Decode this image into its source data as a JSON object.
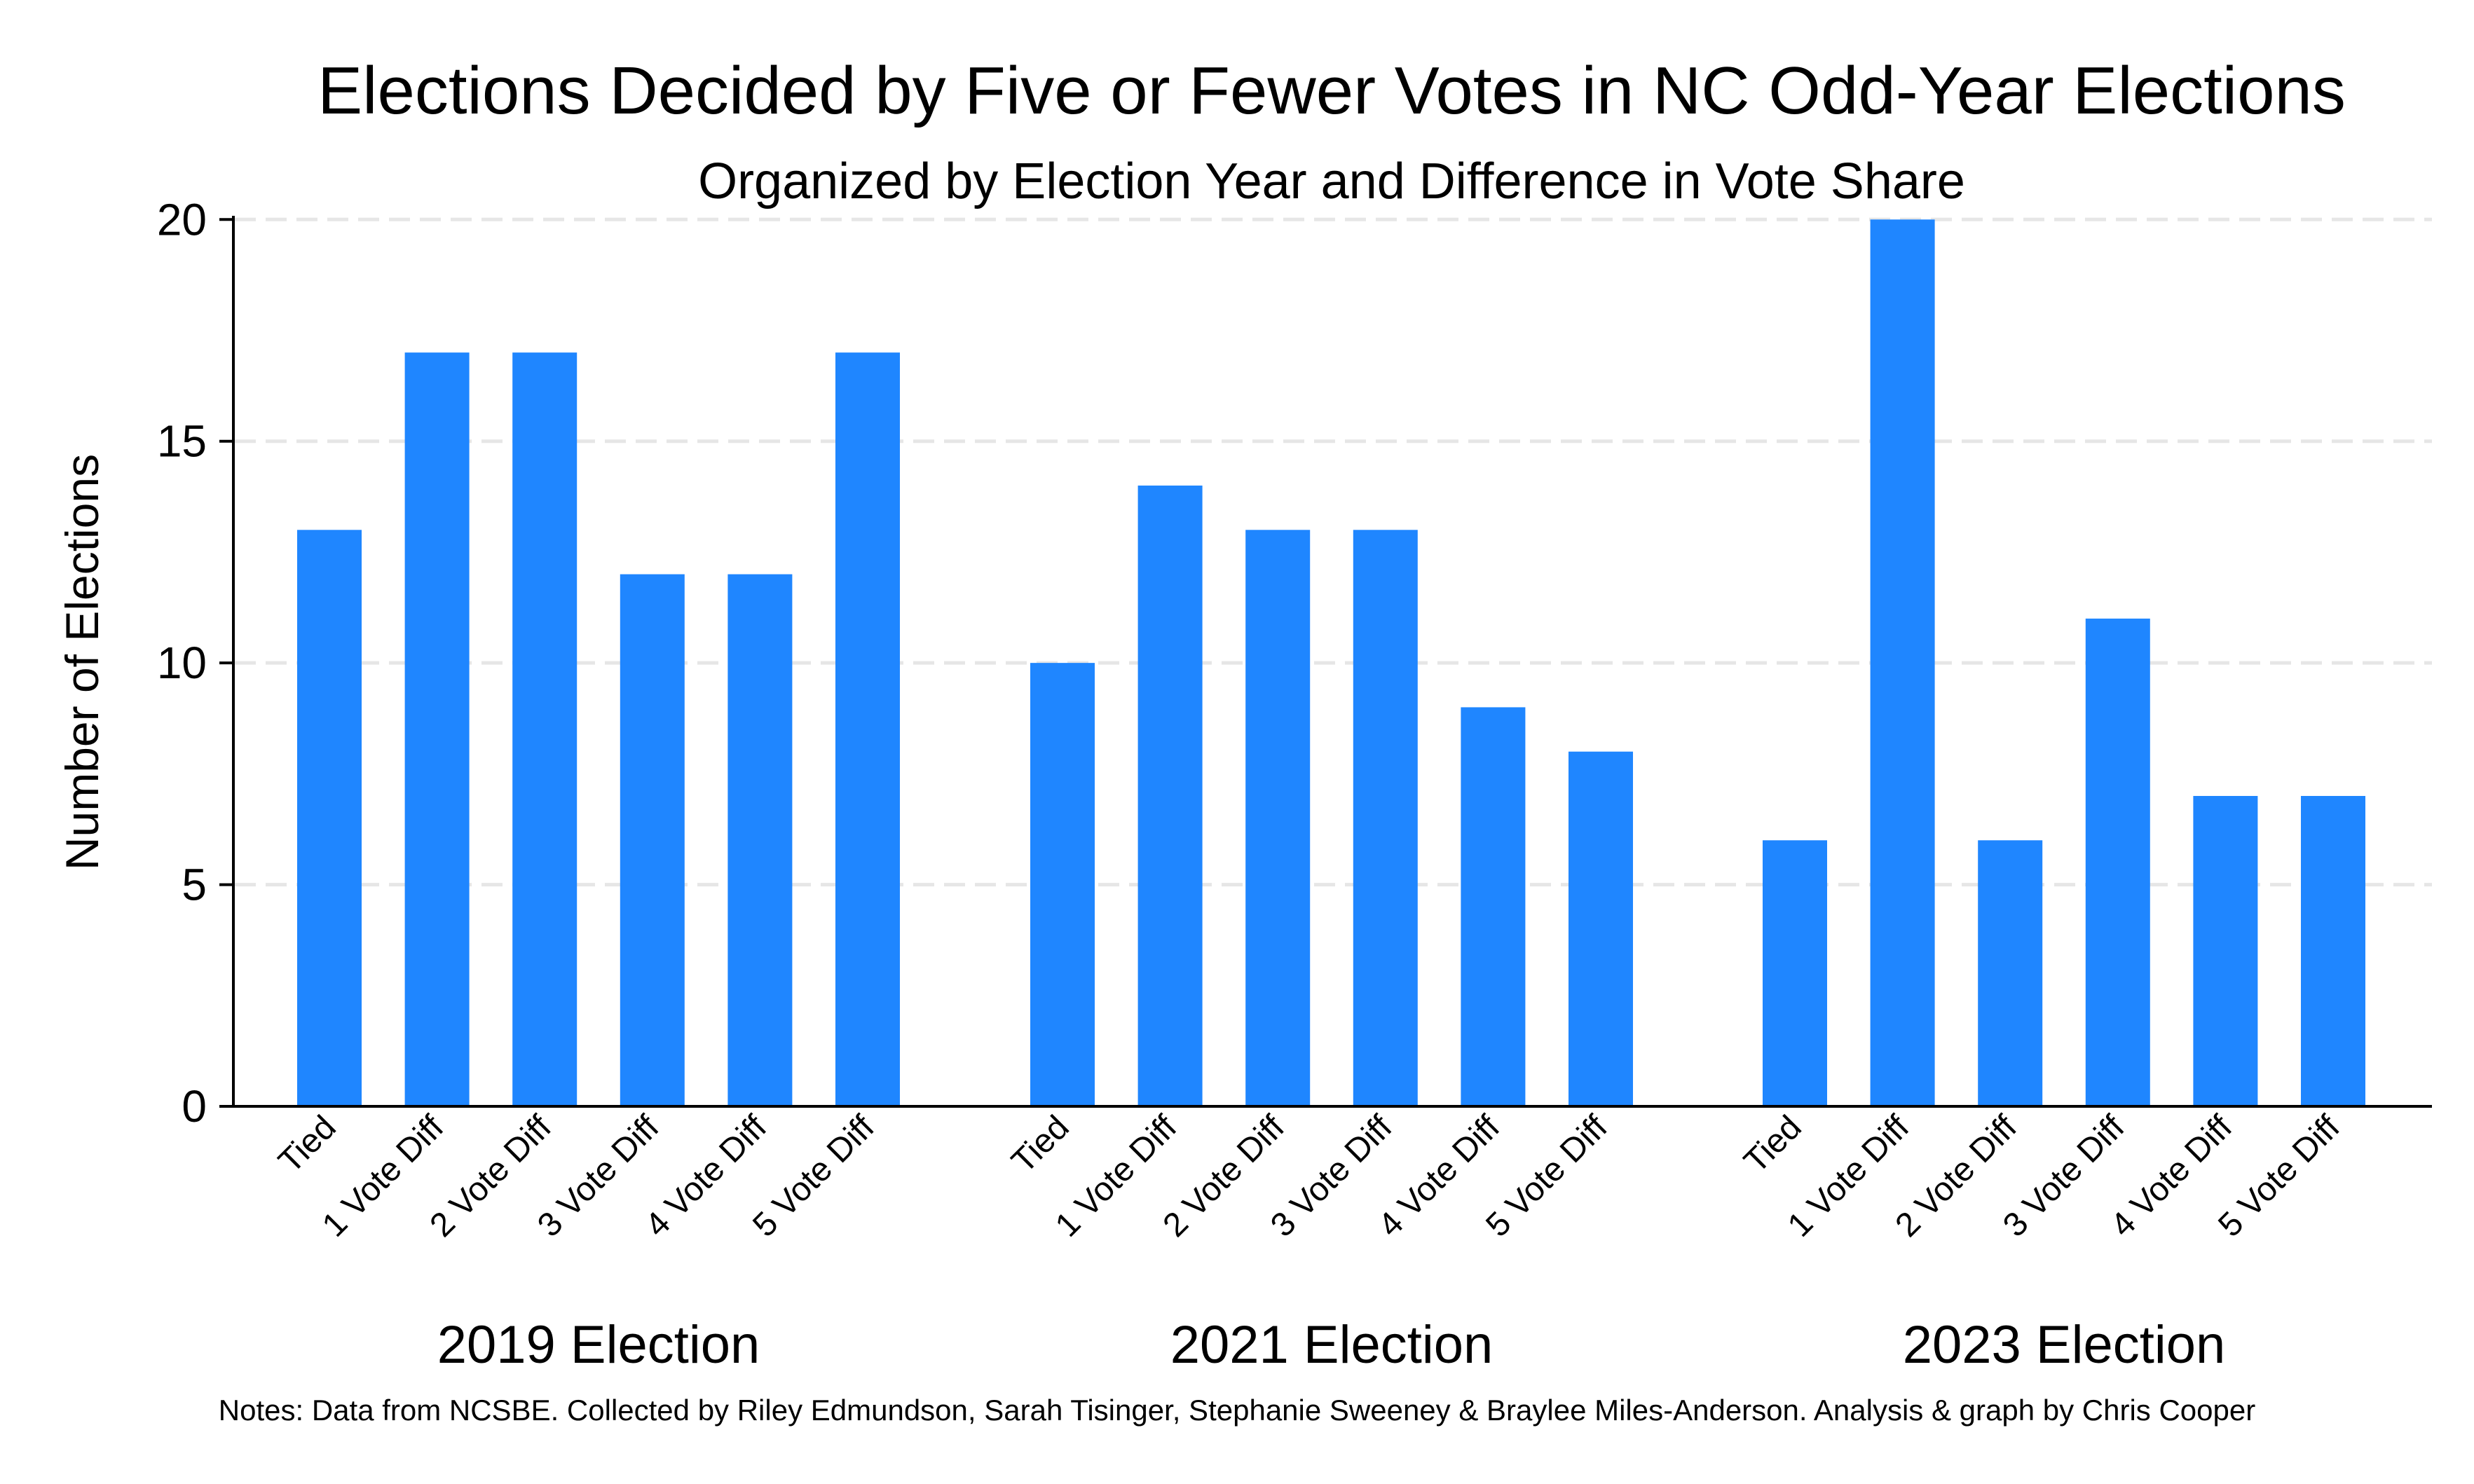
{
  "chart_data": {
    "type": "bar",
    "title": "Elections Decided by Five or Fewer Votes in NC Odd-Year Elections",
    "subtitle": "Organized by Election Year and Difference in Vote Share",
    "ylabel": "Number of Elections",
    "ylim": [
      0,
      21
    ],
    "yticks": [
      0,
      5,
      10,
      15,
      20
    ],
    "grid": true,
    "categories": [
      "Tied",
      "1 Vote Diff",
      "2 Vote Diff",
      "3 Vote Diff",
      "4 Vote Diff",
      "5 Vote Diff"
    ],
    "groups": [
      {
        "name": "2019 Election",
        "values": [
          13,
          17,
          17,
          12,
          12,
          17
        ]
      },
      {
        "name": "2021 Election",
        "values": [
          10,
          14,
          13,
          13,
          9,
          8
        ]
      },
      {
        "name": "2023 Election",
        "values": [
          6,
          20,
          6,
          11,
          7,
          7
        ]
      }
    ],
    "bar_color": "#1f86ff",
    "note": "Notes: Data from NCSBE. Collected by Riley Edmundson, Sarah Tisinger, Stephanie Sweeney & Braylee Miles-Anderson. Analysis & graph by Chris Cooper"
  }
}
